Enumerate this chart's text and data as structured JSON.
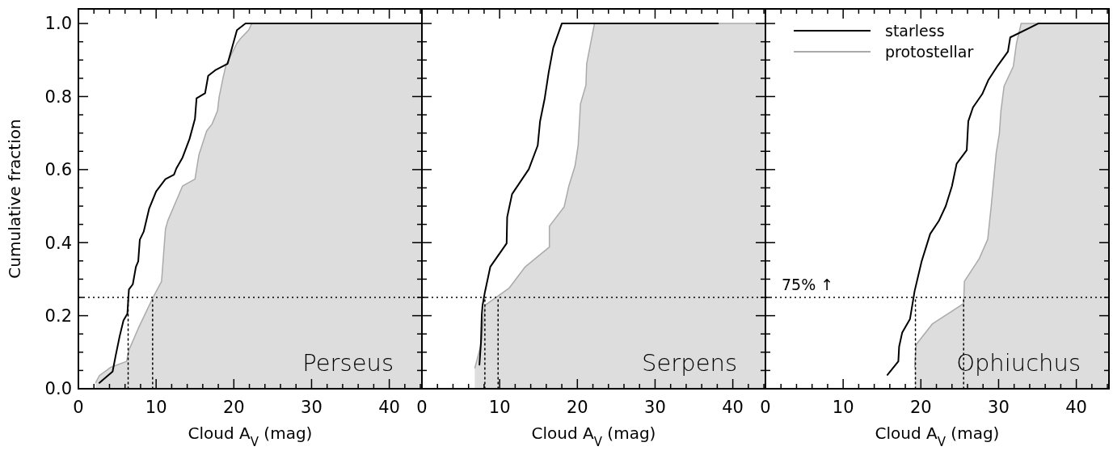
{
  "chart_data": [
    {
      "type": "line",
      "title": "Perseus",
      "xlabel": "Cloud A$_{V}$ (mag)",
      "ylabel": "Cumulative fraction",
      "xlim": [
        0,
        44.2
      ],
      "ylim": [
        0,
        1.04
      ],
      "xticks": [
        0,
        {
          "value": 2,
          "label": null
        },
        {
          "value": 4,
          "label": null
        },
        {
          "value": 6,
          "label": null
        },
        {
          "value": 8,
          "label": null
        },
        10,
        {
          "value": 12,
          "label": null
        },
        {
          "value": 14,
          "label": null
        },
        {
          "value": 16,
          "label": null
        },
        {
          "value": 18,
          "label": null
        },
        20,
        {
          "value": 22,
          "label": null
        },
        {
          "value": 24,
          "label": null
        },
        {
          "value": 26,
          "label": null
        },
        {
          "value": 28,
          "label": null
        },
        30,
        {
          "value": 32,
          "label": null
        },
        {
          "value": 34,
          "label": null
        },
        {
          "value": 36,
          "label": null
        },
        {
          "value": 38,
          "label": null
        },
        40,
        {
          "value": 42,
          "label": null
        },
        {
          "value": 44,
          "label": null
        }
      ],
      "yticks": [
        {
          "value": 0,
          "label": "0.0"
        },
        {
          "value": 0.05,
          "label": null
        },
        {
          "value": 0.1,
          "label": null
        },
        {
          "value": 0.15,
          "label": null
        },
        {
          "value": 0.2,
          "label": "0.2"
        },
        {
          "value": 0.25,
          "label": null
        },
        {
          "value": 0.3,
          "label": null
        },
        {
          "value": 0.35,
          "label": null
        },
        {
          "value": 0.4,
          "label": "0.4"
        },
        {
          "value": 0.45,
          "label": null
        },
        {
          "value": 0.5,
          "label": null
        },
        {
          "value": 0.55,
          "label": null
        },
        {
          "value": 0.6,
          "label": "0.6"
        },
        {
          "value": 0.65,
          "label": null
        },
        {
          "value": 0.7,
          "label": null
        },
        {
          "value": 0.75,
          "label": null
        },
        {
          "value": 0.8,
          "label": "0.8"
        },
        {
          "value": 0.85,
          "label": null
        },
        {
          "value": 0.9,
          "label": null
        },
        {
          "value": 0.95,
          "label": null
        },
        {
          "value": 1,
          "label": "1.0"
        }
      ],
      "ref_lines": [
        {
          "axis": "y",
          "value": 0.25,
          "line_style": "dotted",
          "color": "#000000"
        }
      ],
      "series": [
        {
          "color": "#000000",
          "x": [
            2.7,
            4.4,
            4.8,
            5.3,
            5.8,
            6.3,
            6.5,
            7.0,
            7.4,
            7.7,
            7.9,
            8.4,
            9.1,
            10.0,
            11.2,
            12.3,
            12.6,
            13.4,
            14.3,
            15.0,
            15.2,
            16.3,
            16.7,
            17.6,
            19.2,
            20.4,
            21.5,
            44.2
          ],
          "values": [
            0.016,
            0.047,
            0.091,
            0.143,
            0.187,
            0.205,
            0.272,
            0.286,
            0.334,
            0.349,
            0.408,
            0.43,
            0.493,
            0.54,
            0.574,
            0.586,
            0.603,
            0.633,
            0.684,
            0.739,
            0.795,
            0.809,
            0.857,
            0.872,
            0.89,
            0.982,
            1.0,
            1.0
          ]
        },
        {
          "type": "area",
          "color": "#aaaaaa",
          "x": [
            2.2,
            2.7,
            4.1,
            6.2,
            6.5,
            7.7,
            9.6,
            10.7,
            11.2,
            11.5,
            13.1,
            13.4,
            15.0,
            15.5,
            16.5,
            17.2,
            17.9,
            18.1,
            18.6,
            19.0,
            20.4,
            20.9,
            21.9,
            22.3,
            44.2
          ],
          "values": [
            0.016,
            0.036,
            0.058,
            0.075,
            0.106,
            0.165,
            0.25,
            0.294,
            0.437,
            0.46,
            0.54,
            0.555,
            0.574,
            0.64,
            0.706,
            0.725,
            0.761,
            0.798,
            0.85,
            0.887,
            0.946,
            0.96,
            0.982,
            1.0,
            1.0
          ]
        },
        {
          "color": "#000000",
          "line_style": "dotted",
          "x": [
            6.4,
            6.4
          ],
          "values": [
            0,
            0.25
          ]
        },
        {
          "color": "#000000",
          "line_style": "dotted",
          "x": [
            9.55,
            9.55
          ],
          "values": [
            0,
            0.25
          ]
        }
      ]
    },
    {
      "type": "line",
      "title": "Serpens",
      "xlabel": "Cloud A$_{V}$ (mag)",
      "tick_labels": "x",
      "xlim": [
        0,
        44.2
      ],
      "ylim": [
        0,
        1.04
      ],
      "xticks": [
        0,
        {
          "value": 2,
          "label": null
        },
        {
          "value": 4,
          "label": null
        },
        {
          "value": 6,
          "label": null
        },
        {
          "value": 8,
          "label": null
        },
        10,
        {
          "value": 12,
          "label": null
        },
        {
          "value": 14,
          "label": null
        },
        {
          "value": 16,
          "label": null
        },
        {
          "value": 18,
          "label": null
        },
        20,
        {
          "value": 22,
          "label": null
        },
        {
          "value": 24,
          "label": null
        },
        {
          "value": 26,
          "label": null
        },
        {
          "value": 28,
          "label": null
        },
        30,
        {
          "value": 32,
          "label": null
        },
        {
          "value": 34,
          "label": null
        },
        {
          "value": 36,
          "label": null
        },
        {
          "value": 38,
          "label": null
        },
        40,
        {
          "value": 42,
          "label": null
        },
        {
          "value": 44,
          "label": null
        }
      ],
      "yticks": [
        0,
        {
          "value": 0.05,
          "label": null
        },
        {
          "value": 0.1,
          "label": null
        },
        {
          "value": 0.15,
          "label": null
        },
        0.2,
        {
          "value": 0.25,
          "label": null
        },
        {
          "value": 0.3,
          "label": null
        },
        {
          "value": 0.35,
          "label": null
        },
        0.4,
        {
          "value": 0.45,
          "label": null
        },
        {
          "value": 0.5,
          "label": null
        },
        {
          "value": 0.55,
          "label": null
        },
        0.6,
        {
          "value": 0.65,
          "label": null
        },
        {
          "value": 0.7,
          "label": null
        },
        {
          "value": 0.75,
          "label": null
        },
        0.8,
        {
          "value": 0.85,
          "label": null
        },
        {
          "value": 0.9,
          "label": null
        },
        {
          "value": 0.95,
          "label": null
        },
        1
      ],
      "ref_lines": [
        {
          "axis": "y",
          "value": 0.25,
          "line_style": "dotted",
          "color": "#000000"
        }
      ],
      "series": [
        {
          "color": "#000000",
          "x": [
            7.4,
            7.6,
            7.7,
            7.8,
            8.1,
            8.8,
            10.9,
            10.97,
            11.6,
            13.75,
            14.9,
            15.2,
            15.8,
            16.3,
            16.9,
            18.0,
            38.1
          ],
          "values": [
            0.066,
            0.128,
            0.202,
            0.228,
            0.264,
            0.334,
            0.398,
            0.47,
            0.533,
            0.601,
            0.666,
            0.732,
            0.795,
            0.865,
            0.934,
            1.0,
            1.0
          ]
        },
        {
          "type": "area",
          "color": "#aaaaaa",
          "x": [
            6.8,
            7.6,
            8.1,
            11.2,
            13.3,
            16.4,
            16.4,
            18.3,
            18.9,
            19.7,
            20.1,
            20.4,
            21.1,
            21.2,
            22.2,
            44.2
          ],
          "values": [
            0.056,
            0.121,
            0.228,
            0.275,
            0.334,
            0.388,
            0.445,
            0.498,
            0.555,
            0.61,
            0.666,
            0.78,
            0.831,
            0.89,
            1.0,
            1.0
          ]
        },
        {
          "color": "#000000",
          "line_style": "dotted",
          "x": [
            8.1,
            8.1
          ],
          "values": [
            0,
            0.25
          ]
        },
        {
          "color": "#000000",
          "line_style": "dotted",
          "x": [
            9.8,
            9.8
          ],
          "values": [
            0,
            0.25
          ]
        }
      ]
    },
    {
      "type": "line",
      "title": "Ophiuchus",
      "xlabel": "Cloud A$_{V}$ (mag)",
      "tick_labels": "x",
      "legend": "top left",
      "xlim": [
        0,
        44.2
      ],
      "ylim": [
        0,
        1.04
      ],
      "xticks": [
        0,
        {
          "value": 2,
          "label": null
        },
        {
          "value": 4,
          "label": null
        },
        {
          "value": 6,
          "label": null
        },
        {
          "value": 8,
          "label": null
        },
        10,
        {
          "value": 12,
          "label": null
        },
        {
          "value": 14,
          "label": null
        },
        {
          "value": 16,
          "label": null
        },
        {
          "value": 18,
          "label": null
        },
        20,
        {
          "value": 22,
          "label": null
        },
        {
          "value": 24,
          "label": null
        },
        {
          "value": 26,
          "label": null
        },
        {
          "value": 28,
          "label": null
        },
        30,
        {
          "value": 32,
          "label": null
        },
        {
          "value": 34,
          "label": null
        },
        {
          "value": 36,
          "label": null
        },
        {
          "value": 38,
          "label": null
        },
        40,
        {
          "value": 42,
          "label": null
        },
        {
          "value": 44,
          "label": null
        }
      ],
      "yticks": [
        0,
        {
          "value": 0.05,
          "label": null
        },
        {
          "value": 0.1,
          "label": null
        },
        {
          "value": 0.15,
          "label": null
        },
        0.2,
        {
          "value": 0.25,
          "label": null
        },
        {
          "value": 0.3,
          "label": null
        },
        {
          "value": 0.35,
          "label": null
        },
        0.4,
        {
          "value": 0.45,
          "label": null
        },
        {
          "value": 0.5,
          "label": null
        },
        {
          "value": 0.55,
          "label": null
        },
        0.6,
        {
          "value": 0.65,
          "label": null
        },
        {
          "value": 0.7,
          "label": null
        },
        {
          "value": 0.75,
          "label": null
        },
        0.8,
        {
          "value": 0.85,
          "label": null
        },
        {
          "value": 0.9,
          "label": null
        },
        {
          "value": 0.95,
          "label": null
        },
        1
      ],
      "ref_lines": [
        {
          "axis": "y",
          "value": 0.25,
          "label": "75% ↑",
          "line_style": "dotted",
          "color": "#000000"
        }
      ],
      "series": [
        {
          "name": "starless",
          "color": "#000000",
          "x": [
            15.7,
            17.1,
            17.2,
            17.6,
            18.6,
            19.2,
            20.1,
            21.2,
            22.3,
            23.2,
            24.0,
            24.6,
            25.9,
            26.1,
            26.7,
            27.9,
            28.7,
            29.9,
            31.2,
            31.5,
            35.1,
            44.2
          ],
          "values": [
            0.038,
            0.075,
            0.115,
            0.154,
            0.191,
            0.268,
            0.349,
            0.424,
            0.459,
            0.5,
            0.555,
            0.616,
            0.653,
            0.732,
            0.77,
            0.807,
            0.846,
            0.885,
            0.923,
            0.962,
            1.0,
            1.0
          ]
        },
        {
          "name": "protostellar",
          "type": "area",
          "color": "#aaaaaa",
          "x": [
            19.2,
            19.4,
            21.5,
            25.5,
            25.6,
            27.5,
            28.6,
            29.1,
            29.7,
            30.1,
            30.3,
            30.7,
            31.9,
            32.3,
            32.9,
            44.2
          ],
          "values": [
            0.058,
            0.121,
            0.178,
            0.233,
            0.294,
            0.356,
            0.409,
            0.511,
            0.647,
            0.699,
            0.761,
            0.828,
            0.883,
            0.946,
            1.0,
            1.0
          ]
        },
        {
          "color": "#000000",
          "line_style": "dotted",
          "x": [
            19.3,
            19.3
          ],
          "values": [
            0,
            0.25
          ]
        },
        {
          "color": "#000000",
          "line_style": "dotted",
          "x": [
            25.5,
            25.5
          ],
          "values": [
            0,
            0.25
          ]
        }
      ]
    }
  ]
}
